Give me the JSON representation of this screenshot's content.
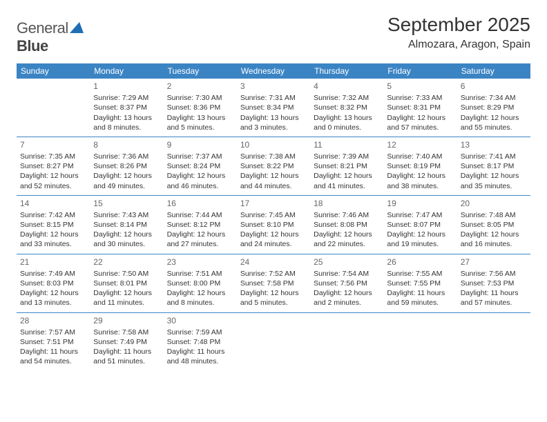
{
  "logo": {
    "text1": "General",
    "text2": "Blue"
  },
  "title": "September 2025",
  "location": "Almozara, Aragon, Spain",
  "colors": {
    "header_bg": "#3b84c4",
    "header_text": "#ffffff",
    "text": "#333333",
    "daynum": "#666666",
    "rule": "#3b84c4",
    "logo_blue": "#1f6fb2"
  },
  "day_headers": [
    "Sunday",
    "Monday",
    "Tuesday",
    "Wednesday",
    "Thursday",
    "Friday",
    "Saturday"
  ],
  "weeks": [
    [
      {
        "n": "",
        "sr": "",
        "ss": "",
        "dl": ""
      },
      {
        "n": "1",
        "sr": "Sunrise: 7:29 AM",
        "ss": "Sunset: 8:37 PM",
        "dl": "Daylight: 13 hours and 8 minutes."
      },
      {
        "n": "2",
        "sr": "Sunrise: 7:30 AM",
        "ss": "Sunset: 8:36 PM",
        "dl": "Daylight: 13 hours and 5 minutes."
      },
      {
        "n": "3",
        "sr": "Sunrise: 7:31 AM",
        "ss": "Sunset: 8:34 PM",
        "dl": "Daylight: 13 hours and 3 minutes."
      },
      {
        "n": "4",
        "sr": "Sunrise: 7:32 AM",
        "ss": "Sunset: 8:32 PM",
        "dl": "Daylight: 13 hours and 0 minutes."
      },
      {
        "n": "5",
        "sr": "Sunrise: 7:33 AM",
        "ss": "Sunset: 8:31 PM",
        "dl": "Daylight: 12 hours and 57 minutes."
      },
      {
        "n": "6",
        "sr": "Sunrise: 7:34 AM",
        "ss": "Sunset: 8:29 PM",
        "dl": "Daylight: 12 hours and 55 minutes."
      }
    ],
    [
      {
        "n": "7",
        "sr": "Sunrise: 7:35 AM",
        "ss": "Sunset: 8:27 PM",
        "dl": "Daylight: 12 hours and 52 minutes."
      },
      {
        "n": "8",
        "sr": "Sunrise: 7:36 AM",
        "ss": "Sunset: 8:26 PM",
        "dl": "Daylight: 12 hours and 49 minutes."
      },
      {
        "n": "9",
        "sr": "Sunrise: 7:37 AM",
        "ss": "Sunset: 8:24 PM",
        "dl": "Daylight: 12 hours and 46 minutes."
      },
      {
        "n": "10",
        "sr": "Sunrise: 7:38 AM",
        "ss": "Sunset: 8:22 PM",
        "dl": "Daylight: 12 hours and 44 minutes."
      },
      {
        "n": "11",
        "sr": "Sunrise: 7:39 AM",
        "ss": "Sunset: 8:21 PM",
        "dl": "Daylight: 12 hours and 41 minutes."
      },
      {
        "n": "12",
        "sr": "Sunrise: 7:40 AM",
        "ss": "Sunset: 8:19 PM",
        "dl": "Daylight: 12 hours and 38 minutes."
      },
      {
        "n": "13",
        "sr": "Sunrise: 7:41 AM",
        "ss": "Sunset: 8:17 PM",
        "dl": "Daylight: 12 hours and 35 minutes."
      }
    ],
    [
      {
        "n": "14",
        "sr": "Sunrise: 7:42 AM",
        "ss": "Sunset: 8:15 PM",
        "dl": "Daylight: 12 hours and 33 minutes."
      },
      {
        "n": "15",
        "sr": "Sunrise: 7:43 AM",
        "ss": "Sunset: 8:14 PM",
        "dl": "Daylight: 12 hours and 30 minutes."
      },
      {
        "n": "16",
        "sr": "Sunrise: 7:44 AM",
        "ss": "Sunset: 8:12 PM",
        "dl": "Daylight: 12 hours and 27 minutes."
      },
      {
        "n": "17",
        "sr": "Sunrise: 7:45 AM",
        "ss": "Sunset: 8:10 PM",
        "dl": "Daylight: 12 hours and 24 minutes."
      },
      {
        "n": "18",
        "sr": "Sunrise: 7:46 AM",
        "ss": "Sunset: 8:08 PM",
        "dl": "Daylight: 12 hours and 22 minutes."
      },
      {
        "n": "19",
        "sr": "Sunrise: 7:47 AM",
        "ss": "Sunset: 8:07 PM",
        "dl": "Daylight: 12 hours and 19 minutes."
      },
      {
        "n": "20",
        "sr": "Sunrise: 7:48 AM",
        "ss": "Sunset: 8:05 PM",
        "dl": "Daylight: 12 hours and 16 minutes."
      }
    ],
    [
      {
        "n": "21",
        "sr": "Sunrise: 7:49 AM",
        "ss": "Sunset: 8:03 PM",
        "dl": "Daylight: 12 hours and 13 minutes."
      },
      {
        "n": "22",
        "sr": "Sunrise: 7:50 AM",
        "ss": "Sunset: 8:01 PM",
        "dl": "Daylight: 12 hours and 11 minutes."
      },
      {
        "n": "23",
        "sr": "Sunrise: 7:51 AM",
        "ss": "Sunset: 8:00 PM",
        "dl": "Daylight: 12 hours and 8 minutes."
      },
      {
        "n": "24",
        "sr": "Sunrise: 7:52 AM",
        "ss": "Sunset: 7:58 PM",
        "dl": "Daylight: 12 hours and 5 minutes."
      },
      {
        "n": "25",
        "sr": "Sunrise: 7:54 AM",
        "ss": "Sunset: 7:56 PM",
        "dl": "Daylight: 12 hours and 2 minutes."
      },
      {
        "n": "26",
        "sr": "Sunrise: 7:55 AM",
        "ss": "Sunset: 7:55 PM",
        "dl": "Daylight: 11 hours and 59 minutes."
      },
      {
        "n": "27",
        "sr": "Sunrise: 7:56 AM",
        "ss": "Sunset: 7:53 PM",
        "dl": "Daylight: 11 hours and 57 minutes."
      }
    ],
    [
      {
        "n": "28",
        "sr": "Sunrise: 7:57 AM",
        "ss": "Sunset: 7:51 PM",
        "dl": "Daylight: 11 hours and 54 minutes."
      },
      {
        "n": "29",
        "sr": "Sunrise: 7:58 AM",
        "ss": "Sunset: 7:49 PM",
        "dl": "Daylight: 11 hours and 51 minutes."
      },
      {
        "n": "30",
        "sr": "Sunrise: 7:59 AM",
        "ss": "Sunset: 7:48 PM",
        "dl": "Daylight: 11 hours and 48 minutes."
      },
      {
        "n": "",
        "sr": "",
        "ss": "",
        "dl": ""
      },
      {
        "n": "",
        "sr": "",
        "ss": "",
        "dl": ""
      },
      {
        "n": "",
        "sr": "",
        "ss": "",
        "dl": ""
      },
      {
        "n": "",
        "sr": "",
        "ss": "",
        "dl": ""
      }
    ]
  ]
}
